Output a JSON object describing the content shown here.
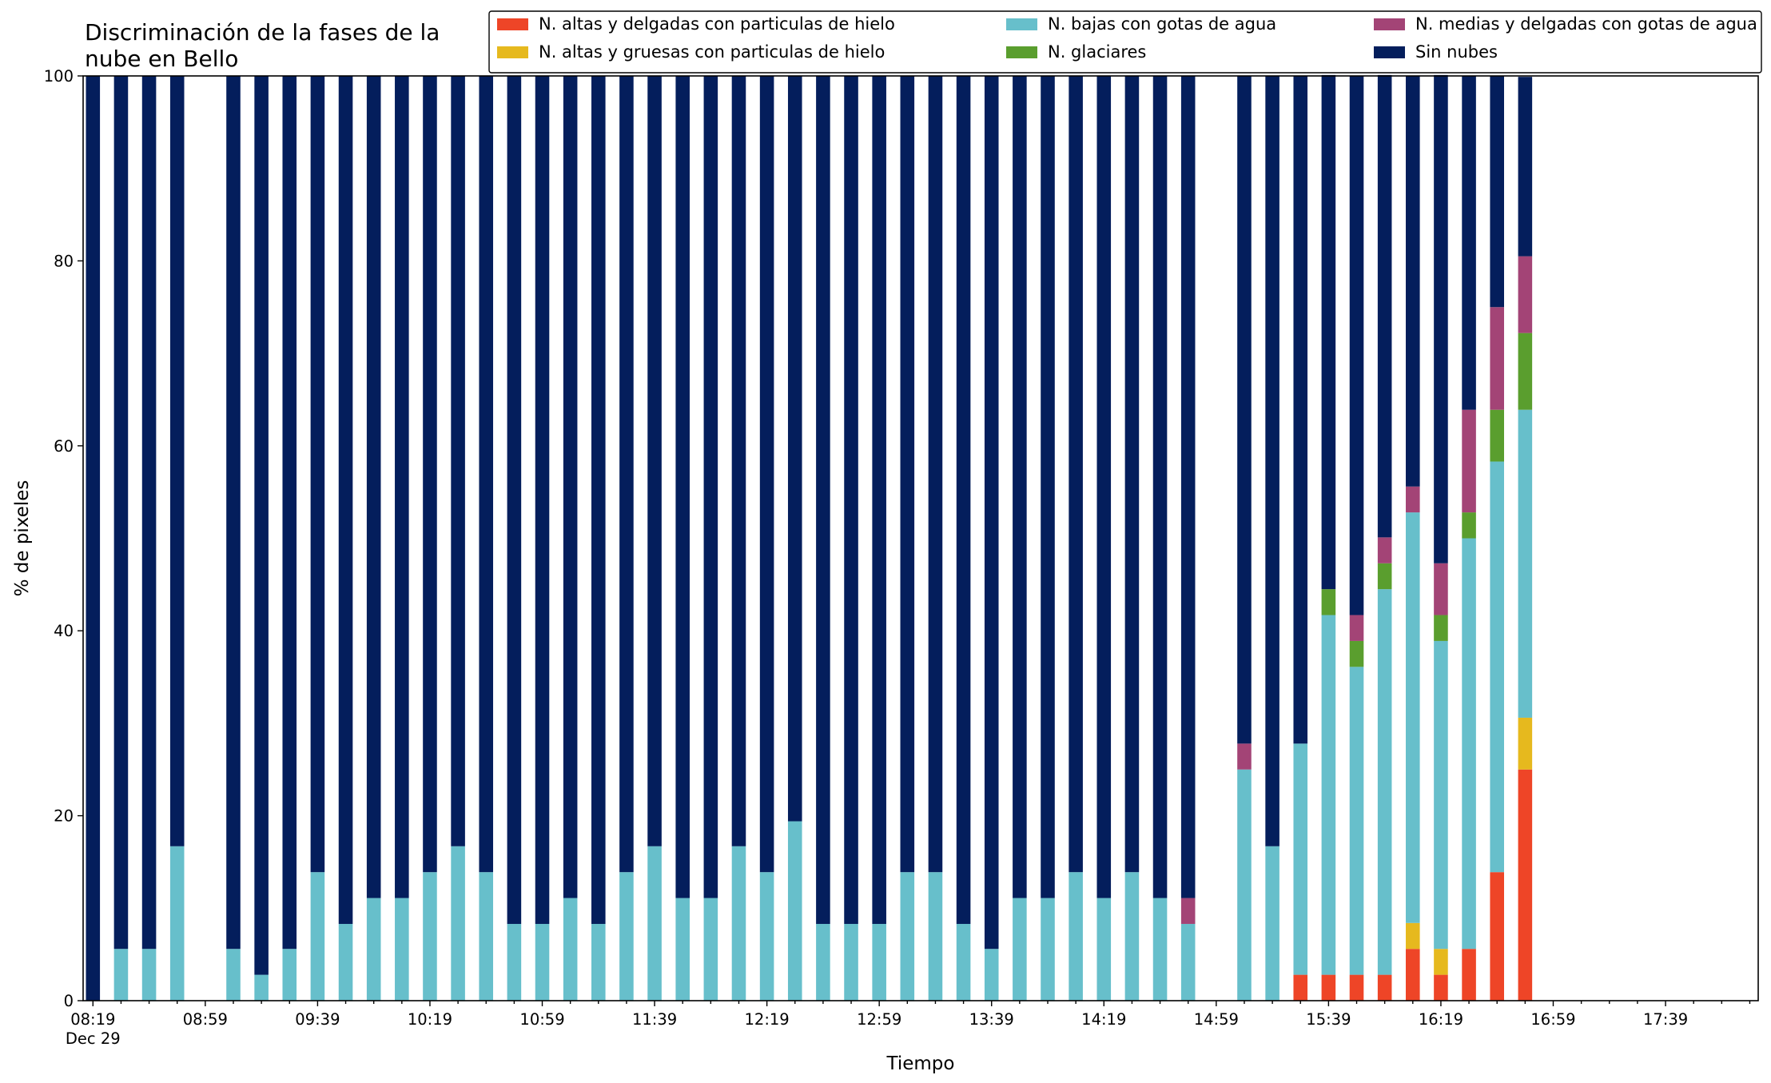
{
  "chart_data": {
    "type": "bar",
    "stacked": true,
    "title": "Discriminación de la fases de la nube en Bello",
    "title_lines": [
      "Discriminación de la fases de la",
      "nube en Bello"
    ],
    "xlabel": "Tiempo",
    "ylabel": "% de pixeles",
    "ylim": [
      0,
      100
    ],
    "y_ticks": [
      "0",
      "20",
      "40",
      "60",
      "80",
      "100"
    ],
    "x_tick_labels": [
      "08:19",
      "08:59",
      "09:39",
      "10:19",
      "10:59",
      "11:39",
      "12:19",
      "12:59",
      "13:39",
      "14:19",
      "14:59",
      "15:39",
      "16:19",
      "16:59",
      "17:39"
    ],
    "x_sublabel": "Dec 29",
    "x_start": "08:19",
    "x_end": "17:49",
    "bar_interval_minutes": 10,
    "grid": false,
    "legend_position": "top-right",
    "legend_columns": 3,
    "times": [
      "08:19",
      "08:29",
      "08:39",
      "08:49",
      "09:09",
      "09:19",
      "09:29",
      "09:39",
      "09:49",
      "09:59",
      "10:09",
      "10:19",
      "10:29",
      "10:39",
      "10:49",
      "10:59",
      "11:09",
      "11:19",
      "11:29",
      "11:39",
      "11:49",
      "11:59",
      "12:09",
      "12:19",
      "12:29",
      "12:39",
      "12:49",
      "12:59",
      "13:09",
      "13:19",
      "13:29",
      "13:39",
      "13:49",
      "13:59",
      "14:09",
      "14:19",
      "14:29",
      "14:39",
      "14:49",
      "15:09",
      "15:19",
      "15:29",
      "15:39",
      "15:49",
      "15:59",
      "16:09",
      "16:19",
      "16:29",
      "16:39",
      "16:49"
    ],
    "series": [
      {
        "name": "N. altas y delgadas con particulas de hielo",
        "color": "#ee4527",
        "values": [
          0,
          0,
          0,
          0,
          0,
          0,
          0,
          0,
          0,
          0,
          0,
          0,
          0,
          0,
          0,
          0,
          0,
          0,
          0,
          0,
          0,
          0,
          0,
          0,
          0,
          0,
          0,
          0,
          0,
          0,
          0,
          0,
          0,
          0,
          0,
          0,
          0,
          0,
          0,
          0,
          0,
          2.8,
          2.8,
          2.8,
          2.8,
          5.6,
          2.8,
          5.6,
          13.9,
          25.0
        ]
      },
      {
        "name": "N. altas y gruesas con particulas de hielo",
        "color": "#e6b91e",
        "values": [
          0,
          0,
          0,
          0,
          0,
          0,
          0,
          0,
          0,
          0,
          0,
          0,
          0,
          0,
          0,
          0,
          0,
          0,
          0,
          0,
          0,
          0,
          0,
          0,
          0,
          0,
          0,
          0,
          0,
          0,
          0,
          0,
          0,
          0,
          0,
          0,
          0,
          0,
          0,
          0,
          0,
          0,
          0,
          0,
          0,
          2.8,
          2.8,
          0,
          0,
          5.6
        ]
      },
      {
        "name": "N. bajas con gotas de agua",
        "color": "#67bfcb",
        "values": [
          0,
          5.6,
          5.6,
          16.7,
          5.6,
          2.8,
          5.6,
          13.9,
          8.3,
          11.1,
          11.1,
          13.9,
          16.7,
          13.9,
          8.3,
          8.3,
          11.1,
          8.3,
          13.9,
          16.7,
          11.1,
          11.1,
          16.7,
          13.9,
          19.4,
          8.3,
          8.3,
          8.3,
          13.9,
          13.9,
          8.3,
          5.6,
          11.1,
          11.1,
          13.9,
          11.1,
          13.9,
          11.1,
          8.3,
          25.0,
          16.7,
          25.0,
          38.9,
          33.3,
          41.7,
          44.4,
          33.3,
          44.4,
          44.4,
          33.3
        ]
      },
      {
        "name": "N. glaciares",
        "color": "#5a9e2e",
        "values": [
          0,
          0,
          0,
          0,
          0,
          0,
          0,
          0,
          0,
          0,
          0,
          0,
          0,
          0,
          0,
          0,
          0,
          0,
          0,
          0,
          0,
          0,
          0,
          0,
          0,
          0,
          0,
          0,
          0,
          0,
          0,
          0,
          0,
          0,
          0,
          0,
          0,
          0,
          0,
          0,
          0,
          0,
          2.8,
          2.8,
          2.8,
          0,
          2.8,
          2.8,
          5.6,
          8.3
        ]
      },
      {
        "name": "N. medias y delgadas con gotas de agua",
        "color": "#a34476",
        "values": [
          0,
          0,
          0,
          0,
          0,
          0,
          0,
          0,
          0,
          0,
          0,
          0,
          0,
          0,
          0,
          0,
          0,
          0,
          0,
          0,
          0,
          0,
          0,
          0,
          0,
          0,
          0,
          0,
          0,
          0,
          0,
          0,
          0,
          0,
          0,
          0,
          0,
          0,
          2.8,
          2.8,
          0,
          0,
          0,
          2.8,
          2.8,
          2.8,
          5.6,
          11.1,
          11.1,
          8.3
        ]
      },
      {
        "name": "Sin nubes",
        "color": "#041e5c",
        "values": [
          100,
          94.4,
          94.4,
          83.3,
          94.4,
          97.2,
          94.4,
          86.1,
          91.7,
          88.9,
          88.9,
          86.1,
          83.3,
          86.1,
          91.7,
          91.7,
          88.9,
          91.7,
          86.1,
          83.3,
          88.9,
          88.9,
          83.3,
          86.1,
          80.6,
          91.7,
          91.7,
          91.7,
          86.1,
          86.1,
          91.7,
          94.4,
          88.9,
          88.9,
          86.1,
          88.9,
          86.1,
          88.9,
          88.9,
          72.2,
          83.3,
          72.2,
          55.6,
          58.3,
          50.0,
          44.4,
          52.8,
          36.1,
          25.0,
          19.4
        ]
      }
    ]
  }
}
